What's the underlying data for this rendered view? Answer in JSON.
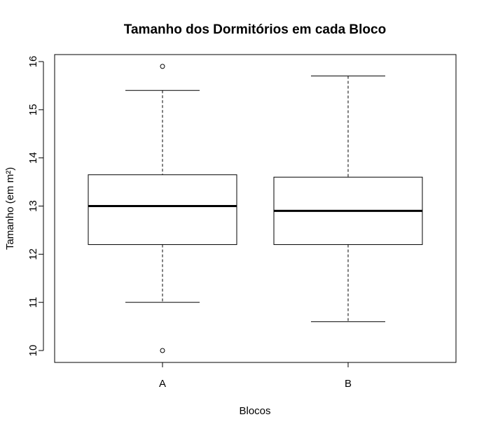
{
  "chart_data": {
    "type": "boxplot",
    "title": "Tamanho dos Dormitórios em cada Bloco",
    "xlabel": "Blocos",
    "ylabel": "Tamanho (em m²)",
    "categories": [
      "A",
      "B"
    ],
    "ylim": [
      9.75,
      16.15
    ],
    "yticks": [
      10,
      11,
      12,
      13,
      14,
      15,
      16
    ],
    "grid": false,
    "boxes": [
      {
        "category": "A",
        "whisker_low": 11.0,
        "q1": 12.2,
        "median": 13.0,
        "q3": 13.65,
        "whisker_high": 15.4,
        "outliers": [
          15.9,
          10.0
        ]
      },
      {
        "category": "B",
        "whisker_low": 10.6,
        "q1": 12.2,
        "median": 12.9,
        "q3": 13.6,
        "whisker_high": 15.7,
        "outliers": []
      }
    ]
  }
}
